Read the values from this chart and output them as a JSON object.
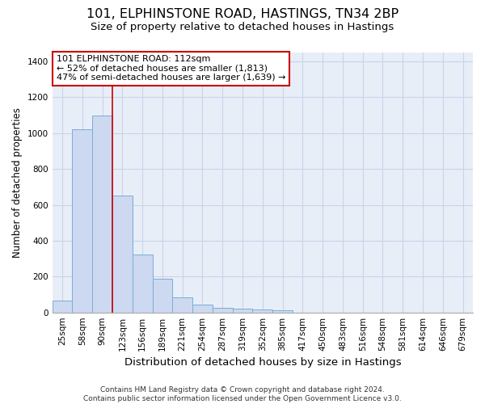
{
  "title_line1": "101, ELPHINSTONE ROAD, HASTINGS, TN34 2BP",
  "title_line2": "Size of property relative to detached houses in Hastings",
  "xlabel": "Distribution of detached houses by size in Hastings",
  "ylabel": "Number of detached properties",
  "categories": [
    "25sqm",
    "58sqm",
    "90sqm",
    "123sqm",
    "156sqm",
    "189sqm",
    "221sqm",
    "254sqm",
    "287sqm",
    "319sqm",
    "352sqm",
    "385sqm",
    "417sqm",
    "450sqm",
    "483sqm",
    "516sqm",
    "548sqm",
    "581sqm",
    "614sqm",
    "646sqm",
    "679sqm"
  ],
  "values": [
    65,
    1020,
    1100,
    650,
    325,
    190,
    85,
    45,
    25,
    20,
    15,
    12,
    0,
    0,
    0,
    0,
    0,
    0,
    0,
    0,
    0
  ],
  "bar_color": "#ccd9f0",
  "bar_edge_color": "#7aadd6",
  "grid_color": "#c8d4e8",
  "background_color": "#e8eef8",
  "vline_color": "#cc0000",
  "vline_pos": 2.5,
  "annotation_text": "101 ELPHINSTONE ROAD: 112sqm\n← 52% of detached houses are smaller (1,813)\n47% of semi-detached houses are larger (1,639) →",
  "annotation_box_facecolor": "#ffffff",
  "annotation_box_edgecolor": "#cc0000",
  "ylim": [
    0,
    1450
  ],
  "yticks": [
    0,
    200,
    400,
    600,
    800,
    1000,
    1200,
    1400
  ],
  "footer_text": "Contains HM Land Registry data © Crown copyright and database right 2024.\nContains public sector information licensed under the Open Government Licence v3.0.",
  "title_fontsize": 11.5,
  "subtitle_fontsize": 9.5,
  "tick_fontsize": 7.5,
  "ylabel_fontsize": 8.5,
  "xlabel_fontsize": 9.5,
  "annotation_fontsize": 8,
  "footer_fontsize": 6.5
}
